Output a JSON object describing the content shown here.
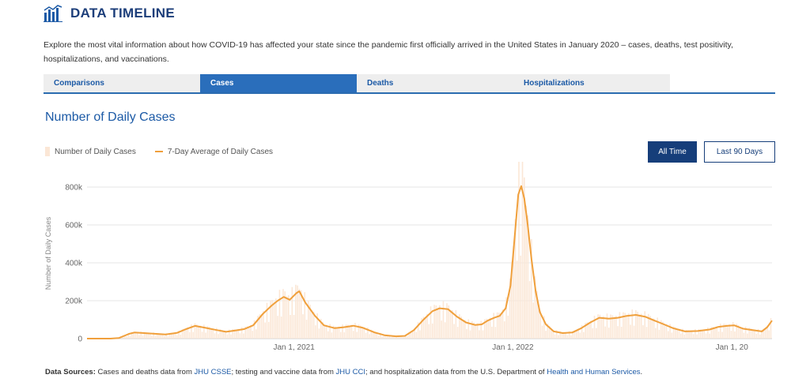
{
  "header": {
    "title": "DATA TIMELINE",
    "icon": "bar-chart-icon"
  },
  "intro": "Explore the most vital information about how COVID-19 has affected your state since the pandemic first officially arrived in the United States in January 2020 – cases, deaths, test positivity, hospitalizations, and vaccinations.",
  "tabs": [
    {
      "label": "Comparisons",
      "active": false
    },
    {
      "label": "Cases",
      "active": true
    },
    {
      "label": "Deaths",
      "active": false
    },
    {
      "label": "Hospitalizations",
      "active": false
    }
  ],
  "chart_title": "Number of Daily Cases",
  "legend": {
    "bars": "Number of Daily Cases",
    "line": "7-Day Average of Daily Cases"
  },
  "buttons": {
    "all_time": "All Time",
    "last_90": "Last 90 Days"
  },
  "colors": {
    "accent": "#163e7a",
    "tab_active": "#2a6ebb",
    "line": "#f0a03c",
    "bars": "#fbe7d6"
  },
  "chart_data": {
    "type": "line",
    "ylabel": "Number of Daily Cases",
    "yticks": [
      "0",
      "200k",
      "400k",
      "600k",
      "800k"
    ],
    "ytick_values": [
      0,
      200000,
      400000,
      600000,
      800000
    ],
    "ylim": [
      0,
      900000
    ],
    "xticks": [
      {
        "date": "2021-01-01",
        "label": "Jan 1, 2021"
      },
      {
        "date": "2022-01-01",
        "label": "Jan 1, 2022"
      },
      {
        "date": "2023-01-01",
        "label": "Jan 1, 20"
      }
    ],
    "xlim": [
      "2020-01-22",
      "2023-03-09"
    ],
    "grid": true,
    "series": [
      {
        "name": "7-Day Average of Daily Cases",
        "points": [
          [
            "2020-01-22",
            0
          ],
          [
            "2020-03-01",
            0
          ],
          [
            "2020-03-15",
            3000
          ],
          [
            "2020-04-01",
            25000
          ],
          [
            "2020-04-10",
            32000
          ],
          [
            "2020-05-01",
            28000
          ],
          [
            "2020-06-01",
            22000
          ],
          [
            "2020-06-20",
            30000
          ],
          [
            "2020-07-05",
            50000
          ],
          [
            "2020-07-20",
            67000
          ],
          [
            "2020-08-05",
            58000
          ],
          [
            "2020-08-25",
            45000
          ],
          [
            "2020-09-10",
            36000
          ],
          [
            "2020-09-25",
            43000
          ],
          [
            "2020-10-10",
            50000
          ],
          [
            "2020-10-25",
            70000
          ],
          [
            "2020-11-10",
            130000
          ],
          [
            "2020-11-25",
            175000
          ],
          [
            "2020-12-05",
            200000
          ],
          [
            "2020-12-15",
            220000
          ],
          [
            "2020-12-25",
            205000
          ],
          [
            "2021-01-05",
            240000
          ],
          [
            "2021-01-10",
            250000
          ],
          [
            "2021-01-20",
            190000
          ],
          [
            "2021-02-05",
            120000
          ],
          [
            "2021-02-20",
            70000
          ],
          [
            "2021-03-10",
            55000
          ],
          [
            "2021-03-25",
            60000
          ],
          [
            "2021-04-10",
            68000
          ],
          [
            "2021-04-25",
            58000
          ],
          [
            "2021-05-15",
            33000
          ],
          [
            "2021-06-01",
            18000
          ],
          [
            "2021-06-20",
            12000
          ],
          [
            "2021-07-05",
            14000
          ],
          [
            "2021-07-20",
            45000
          ],
          [
            "2021-08-05",
            100000
          ],
          [
            "2021-08-20",
            145000
          ],
          [
            "2021-09-01",
            160000
          ],
          [
            "2021-09-15",
            155000
          ],
          [
            "2021-09-30",
            115000
          ],
          [
            "2021-10-15",
            85000
          ],
          [
            "2021-10-30",
            72000
          ],
          [
            "2021-11-10",
            75000
          ],
          [
            "2021-11-20",
            95000
          ],
          [
            "2021-12-01",
            110000
          ],
          [
            "2021-12-10",
            120000
          ],
          [
            "2021-12-20",
            160000
          ],
          [
            "2021-12-28",
            280000
          ],
          [
            "2022-01-03",
            500000
          ],
          [
            "2022-01-10",
            760000
          ],
          [
            "2022-01-15",
            805000
          ],
          [
            "2022-01-20",
            740000
          ],
          [
            "2022-01-25",
            620000
          ],
          [
            "2022-02-01",
            420000
          ],
          [
            "2022-02-08",
            250000
          ],
          [
            "2022-02-15",
            140000
          ],
          [
            "2022-02-25",
            75000
          ],
          [
            "2022-03-10",
            38000
          ],
          [
            "2022-03-25",
            29000
          ],
          [
            "2022-04-10",
            32000
          ],
          [
            "2022-04-25",
            55000
          ],
          [
            "2022-05-10",
            85000
          ],
          [
            "2022-05-25",
            110000
          ],
          [
            "2022-06-10",
            105000
          ],
          [
            "2022-06-25",
            110000
          ],
          [
            "2022-07-10",
            120000
          ],
          [
            "2022-07-25",
            125000
          ],
          [
            "2022-08-10",
            115000
          ],
          [
            "2022-08-25",
            95000
          ],
          [
            "2022-09-10",
            75000
          ],
          [
            "2022-09-25",
            55000
          ],
          [
            "2022-10-15",
            38000
          ],
          [
            "2022-11-05",
            40000
          ],
          [
            "2022-11-25",
            48000
          ],
          [
            "2022-12-10",
            62000
          ],
          [
            "2022-12-25",
            68000
          ],
          [
            "2023-01-05",
            70000
          ],
          [
            "2023-01-20",
            52000
          ],
          [
            "2023-02-05",
            45000
          ],
          [
            "2023-02-20",
            38000
          ],
          [
            "2023-03-01",
            60000
          ],
          [
            "2023-03-09",
            95000
          ]
        ]
      }
    ]
  },
  "sources": {
    "label": "Data Sources:",
    "t1": " Cases and deaths data from ",
    "l1": "JHU CSSE",
    "t2": "; testing and vaccine data from ",
    "l2": "JHU CCI",
    "t3": "; and hospitalization data from the U.S. Department of ",
    "l3": "Health and Human Services",
    "t4": "."
  }
}
